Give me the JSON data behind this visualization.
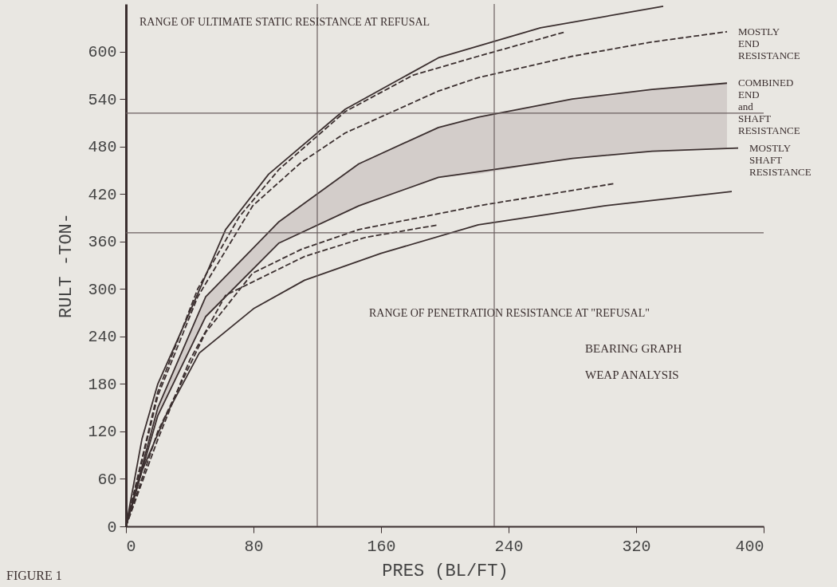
{
  "chart_data": {
    "type": "line",
    "xlabel": "PRES (BL/FT)",
    "ylabel": "RULT -TON-",
    "title": "BEARING GRAPH",
    "subtitle": "WEAP ANALYSIS",
    "xlim": [
      0,
      400
    ],
    "ylim": [
      0,
      660
    ],
    "xticks": [
      0,
      80,
      160,
      240,
      320,
      400
    ],
    "yticks": [
      0,
      60,
      120,
      180,
      240,
      300,
      360,
      420,
      480,
      540,
      600
    ],
    "grid": false,
    "series": [
      {
        "color": "#3b2f2f",
        "line_style": "solid",
        "x": [
          0,
          10,
          20,
          37.5,
          62.5,
          89.5,
          137.5,
          196,
          260,
          337
        ],
        "values": [
          0,
          110,
          180,
          259,
          375,
          445,
          527,
          592,
          630,
          657
        ]
      },
      {
        "color": "#3b2f2f",
        "line_style": "dashed",
        "x": [
          0,
          20,
          45,
          71,
          96,
          137.5,
          180,
          221,
          276
        ],
        "values": [
          0,
          170,
          300,
          391,
          451,
          524,
          570,
          594,
          625
        ]
      },
      {
        "name": "MOSTLY END RESISTANCE",
        "color": "#3b2f2f",
        "line_style": "dashed",
        "x": [
          0,
          20,
          45,
          79.5,
          110,
          137.5,
          196,
          221,
          280,
          330,
          377
        ],
        "values": [
          0,
          165,
          290,
          405,
          460,
          497,
          550,
          567,
          594,
          612,
          625
        ]
      },
      {
        "name": "COMBINED END and SHAFT RESISTANCE",
        "color": "#3b2f2f",
        "line_style": "solid",
        "x": [
          0,
          20,
          50,
          96,
          146,
          196,
          221,
          280,
          330,
          377
        ],
        "values": [
          0,
          150,
          290,
          385,
          458,
          504,
          517,
          540,
          552,
          560
        ],
        "lower": [
          0,
          140,
          265,
          358,
          405,
          441,
          445,
          465,
          474,
          477
        ],
        "upper": [
          0,
          150,
          290,
          385,
          458,
          504,
          517,
          540,
          552,
          560
        ]
      },
      {
        "name": "MOSTLY SHAFT RESISTANCE",
        "color": "#3b2f2f",
        "line_style": "solid",
        "x": [
          0,
          20,
          50,
          96,
          146,
          196,
          280,
          330,
          384
        ],
        "values": [
          0,
          140,
          265,
          358,
          405,
          441,
          465,
          474,
          478
        ]
      },
      {
        "color": "#3b2f2f",
        "line_style": "dashed",
        "x": [
          0,
          20,
          50,
          79.5,
          110,
          146,
          221,
          306
        ],
        "values": [
          0,
          120,
          245,
          320,
          350,
          375,
          405,
          433
        ]
      },
      {
        "color": "#3b2f2f",
        "line_style": "dashed",
        "x": [
          0,
          20,
          40,
          62.5,
          112,
          150,
          196
        ],
        "values": [
          0,
          110,
          210,
          292,
          341,
          365,
          381
        ]
      },
      {
        "color": "#3b2f2f",
        "line_style": "solid",
        "x": [
          0,
          10,
          25,
          46,
          80,
          112,
          160,
          221,
          300,
          380
        ],
        "values": [
          0,
          70,
          140,
          219,
          275,
          311,
          345,
          381,
          405,
          423
        ]
      }
    ],
    "ref_lines": [
      {
        "axis": "y",
        "value": 522
      },
      {
        "axis": "y",
        "value": 371
      },
      {
        "axis": "x",
        "value": 120
      },
      {
        "axis": "x",
        "value": 231
      }
    ],
    "annotations": [
      "RANGE OF ULTIMATE STATIC RESISTANCE AT REFUSAL",
      "RANGE OF PENETRATION RESISTANCE AT \"REFUSAL\"",
      "FIGURE 1"
    ]
  }
}
